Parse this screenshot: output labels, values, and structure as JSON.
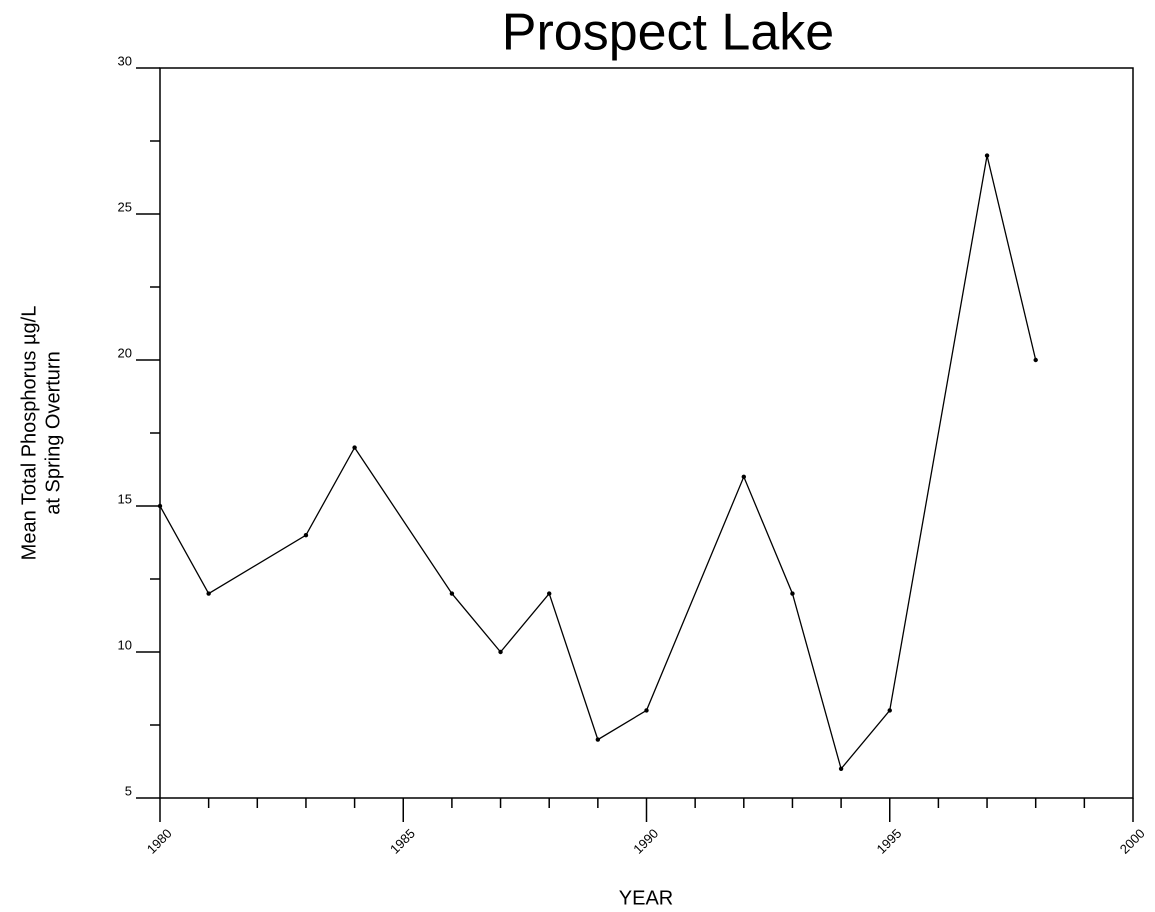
{
  "chart_data": {
    "type": "line",
    "title": "Prospect Lake",
    "ylabel": [
      "Mean Total Phosphorus µg/L",
      "at Spring Overturn"
    ],
    "xlabel": "YEAR",
    "x": [
      1980,
      1981,
      1983,
      1984,
      1986,
      1987,
      1988,
      1989,
      1990,
      1992,
      1993,
      1994,
      1995,
      1997,
      1998
    ],
    "series": [
      {
        "color": "#000000",
        "values": [
          15,
          12,
          14,
          17,
          12,
          10,
          12,
          7,
          8,
          16,
          12,
          6,
          8,
          27,
          20
        ]
      }
    ],
    "xlim": [
      1980,
      2000
    ],
    "xticks": [
      1980,
      1985,
      1990,
      1995,
      2000
    ],
    "xminorticks": [
      1981,
      1982,
      1983,
      1984,
      1986,
      1987,
      1988,
      1989,
      1991,
      1992,
      1993,
      1994,
      1996,
      1997,
      1998,
      1999
    ],
    "ylim": [
      5,
      30
    ],
    "yticks": [
      5,
      10,
      15,
      20,
      25,
      30
    ],
    "yminorticks": [
      7.5,
      12.5,
      17.5,
      22.5,
      27.5
    ],
    "grid": false
  }
}
